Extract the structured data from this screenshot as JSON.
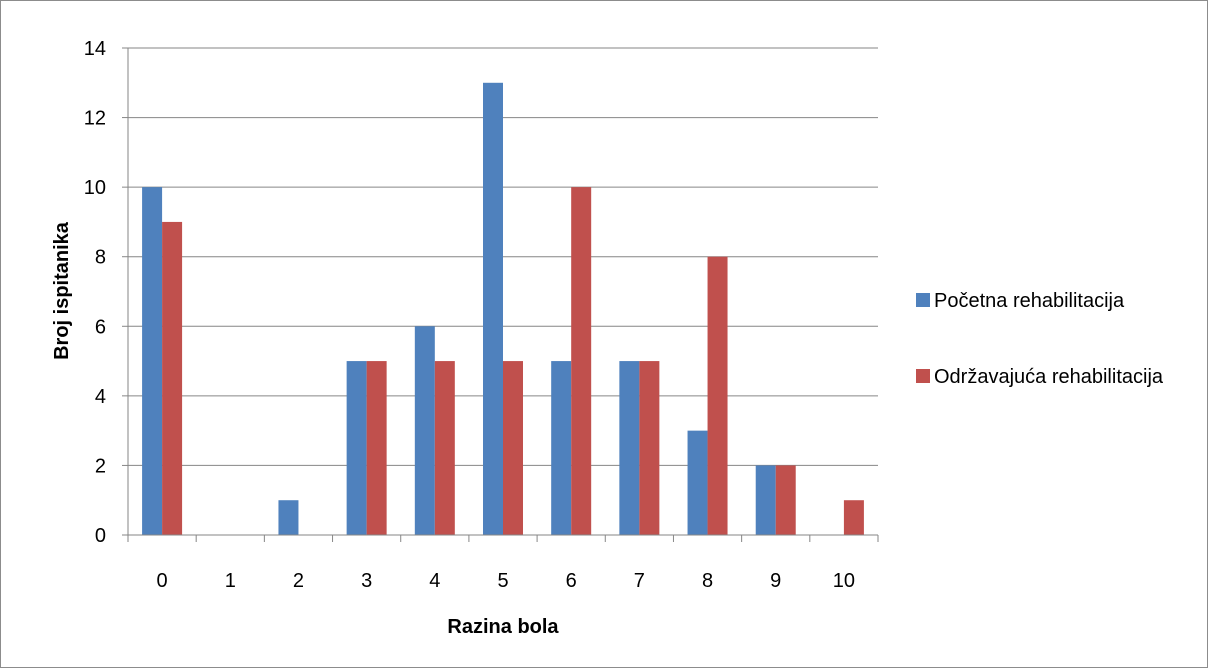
{
  "chart_data": {
    "type": "bar",
    "title": "",
    "xlabel": "Razina bola",
    "ylabel": "Broj ispitanika",
    "categories": [
      "0",
      "1",
      "2",
      "3",
      "4",
      "5",
      "6",
      "7",
      "8",
      "9",
      "10"
    ],
    "series": [
      {
        "name": "Početna rehabilitacija",
        "values": [
          10,
          0,
          1,
          5,
          6,
          13,
          5,
          5,
          3,
          2,
          0
        ],
        "color": "#4f81bd"
      },
      {
        "name": "Održavajuća rehabilitacija",
        "values": [
          9,
          0,
          0,
          5,
          5,
          5,
          10,
          5,
          8,
          2,
          1
        ],
        "color": "#c0504d"
      }
    ],
    "ylim": [
      0,
      14
    ],
    "yticks": [
      "0",
      "2",
      "4",
      "6",
      "8",
      "10",
      "12",
      "14"
    ],
    "grid": true,
    "legend_position": "right"
  }
}
